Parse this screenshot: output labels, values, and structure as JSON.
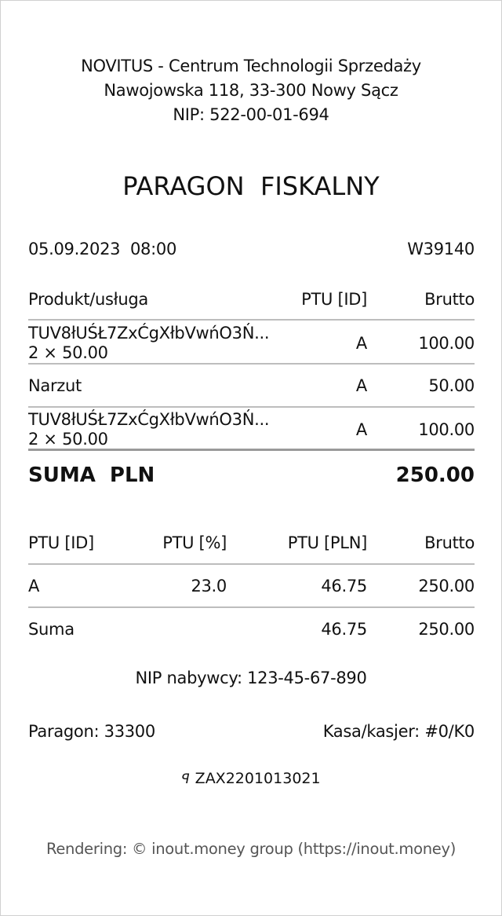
{
  "header": {
    "company": "NOVITUS - Centrum Technologii Sprzedaży",
    "address": "Nawojowska 118, 33-300 Nowy Sącz",
    "nip": "NIP: 522-00-01-694"
  },
  "title": "PARAGON  FISKALNY",
  "meta": {
    "datetime": "05.09.2023  08:00",
    "number": "W39140"
  },
  "items_table": {
    "headers": [
      "Produkt/usługa",
      "PTU [ID]",
      "Brutto"
    ],
    "rows": [
      {
        "name": "TUV8łUŚŁ7ZxĆgXłbVwńO3Ń...",
        "qty": "2 × 50.00",
        "ptu": "A",
        "brutto": "100.00"
      },
      {
        "name": "Narzut",
        "qty": "",
        "ptu": "A",
        "brutto": "50.00"
      },
      {
        "name": "TUV8łUŚŁ7ZxĆgXłbVwńO3Ń...",
        "qty": "2 × 50.00",
        "ptu": "A",
        "brutto": "100.00"
      }
    ]
  },
  "total": {
    "label": "SUMA  PLN",
    "value": "250.00"
  },
  "tax_table": {
    "headers": [
      "PTU [ID]",
      "PTU [%]",
      "PTU [PLN]",
      "Brutto"
    ],
    "rows": [
      [
        "A",
        "23.0",
        "46.75",
        "250.00"
      ],
      [
        "Suma",
        "",
        "46.75",
        "250.00"
      ]
    ]
  },
  "buyer_nip": "NIP nabywcy: 123-45-67-890",
  "footer": {
    "receipt": "Paragon: 33300",
    "cashier": "Kasa/kasjer: #0/K0",
    "fiscal_logo": "PL",
    "fiscal_id": "ZAX2201013021",
    "rendering": "Rendering: © inout.money group (https://inout.money)"
  }
}
